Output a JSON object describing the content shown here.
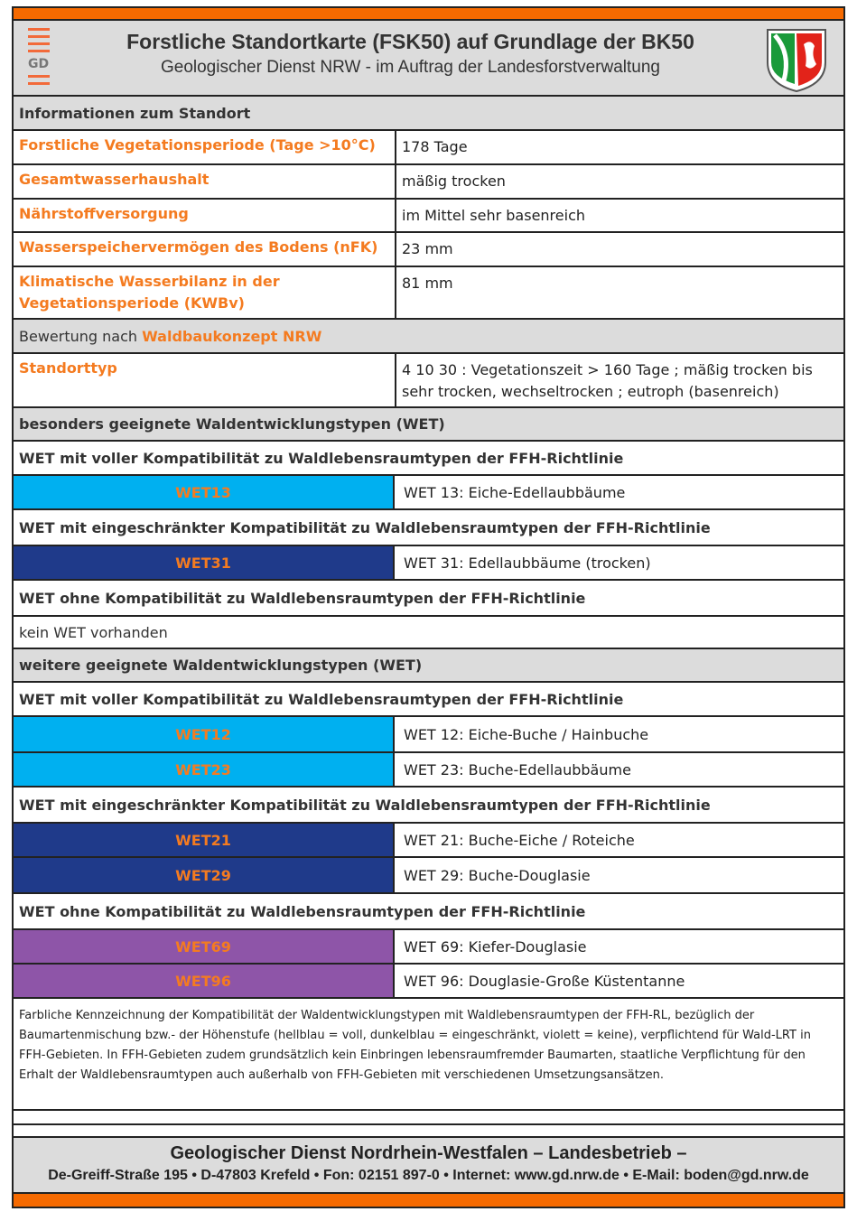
{
  "header": {
    "logo_text": "GD",
    "title": "Forstliche Standortkarte (FSK50) auf Grundlage der BK50",
    "subtitle": "Geologischer Dienst NRW - im Auftrag der Landesforstverwaltung"
  },
  "colors": {
    "accent": "#f66a00",
    "label": "#f47b20",
    "hellblau": "#00b0f0",
    "dunkelblau": "#1f3a8a",
    "violett": "#8e55a8",
    "gray": "#dcdcdc"
  },
  "info": {
    "heading": "Informationen zum Standort",
    "rows": [
      {
        "label": "Forstliche Vegetationsperiode (Tage >10°C)",
        "value": "178 Tage"
      },
      {
        "label": "Gesamtwasserhaushalt",
        "value": "mäßig trocken"
      },
      {
        "label": "Nährstoffversorgung",
        "value": "im Mittel sehr basenreich"
      },
      {
        "label": "Wasserspeichervermögen des Bodens (nFK)",
        "value": "23 mm"
      },
      {
        "label": "Klimatische Wasserbilanz in der Vegetationsperiode (KWBv)",
        "value": "81 mm"
      }
    ]
  },
  "bewertung": {
    "prefix": "Bewertung nach ",
    "link": "Waldbaukonzept NRW",
    "label": "Standorttyp",
    "value": "4 10 30 : Vegetationszeit > 160 Tage ; mäßig trocken bis sehr trocken, wechseltrocken ; eutroph (basenreich)"
  },
  "besonders": {
    "heading": "besonders geeignete Waldentwicklungstypen (WET)",
    "voll": "WET mit voller Kompatibilität zu Waldlebensraumtypen der FFH-Richtlinie",
    "voll_items": [
      {
        "code": "WET13",
        "desc": "WET 13: Eiche-Edellaubbäume"
      }
    ],
    "einge": "WET mit eingeschränkter Kompatibilität zu Waldlebensraumtypen der FFH-Richtlinie",
    "einge_items": [
      {
        "code": "WET31",
        "desc": "WET 31: Edellaubbäume (trocken)"
      }
    ],
    "ohne": "WET ohne Kompatibilität zu Waldlebensraumtypen der FFH-Richtlinie",
    "ohne_none": "kein WET vorhanden"
  },
  "weitere": {
    "heading": "weitere geeignete Waldentwicklungstypen (WET)",
    "voll": "WET mit voller Kompatibilität zu Waldlebensraumtypen der FFH-Richtlinie",
    "voll_items": [
      {
        "code": "WET12",
        "desc": "WET 12: Eiche-Buche / Hainbuche"
      },
      {
        "code": "WET23",
        "desc": "WET 23: Buche-Edellaubbäume"
      }
    ],
    "einge": "WET mit eingeschränkter Kompatibilität zu Waldlebensraumtypen der FFH-Richtlinie",
    "einge_items": [
      {
        "code": "WET21",
        "desc": "WET 21: Buche-Eiche / Roteiche"
      },
      {
        "code": "WET29",
        "desc": "WET 29: Buche-Douglasie"
      }
    ],
    "ohne": "WET ohne Kompatibilität zu Waldlebensraumtypen der FFH-Richtlinie",
    "ohne_items": [
      {
        "code": "WET69",
        "desc": "WET 69: Kiefer-Douglasie"
      },
      {
        "code": "WET96",
        "desc": "WET 96: Douglasie-Große Küstentanne"
      }
    ]
  },
  "note": "Farbliche Kennzeichnung der Kompatibilität der Waldentwicklungstypen mit Waldlebensraumtypen der FFH-RL, bezüglich der Baumartenmischung bzw.- der Höhenstufe (hellblau = voll, dunkelblau = eingeschränkt, violett = keine), verpflichtend für Wald-LRT in FFH-Gebieten. In FFH-Gebieten zudem grundsätzlich kein Einbringen lebensraumfremder Baumarten, staatliche Verpflichtung für den Erhalt der Waldlebensraumtypen auch außerhalb von FFH-Gebieten mit verschiedenen Umsetzungsansätzen.",
  "footer": {
    "line1": "Geologischer Dienst Nordrhein-Westfalen – Landesbetrieb –",
    "line2": "De-Greiff-Straße 195 • D-47803 Krefeld • Fon: 02151 897-0 • Internet: www.gd.nrw.de • E-Mail: boden@gd.nrw.de"
  }
}
